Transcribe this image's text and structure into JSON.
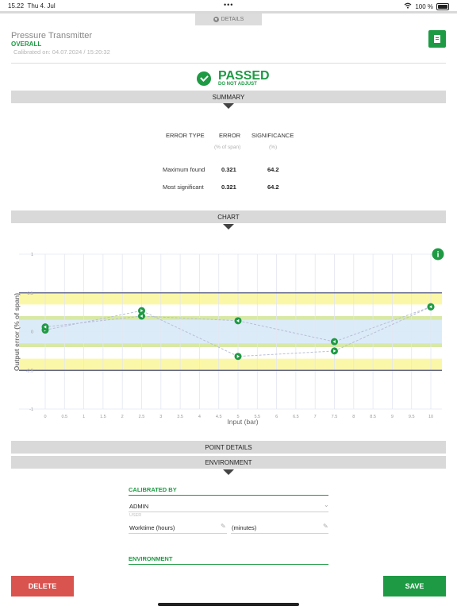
{
  "status_bar": {
    "time": "15.22",
    "date": "Thu 4. Jul",
    "battery": "100 %"
  },
  "details_tab": {
    "label": "DETAILS"
  },
  "header": {
    "title": "Pressure Transmitter",
    "subtitle": "OVERALL",
    "calibrated_on": "Calibrated on: 04.07.2024 / 15:20:32",
    "note_icon": "note-icon"
  },
  "result": {
    "status": "PASSED",
    "sub": "DO NOT ADJUST"
  },
  "summary": {
    "label": "SUMMARY",
    "headers": [
      "ERROR TYPE",
      "ERROR",
      "SIGNIFICANCE"
    ],
    "units": [
      "(% of span)",
      "(%)"
    ],
    "rows": [
      {
        "type": "Maximum found",
        "error": "0.321",
        "significance": "64.2"
      },
      {
        "type": "Most significant",
        "error": "0.321",
        "significance": "64.2"
      }
    ]
  },
  "chart_section": {
    "label": "CHART"
  },
  "chart_data": {
    "type": "line",
    "xlabel": "Input (bar)",
    "ylabel": "Output error (% of span)",
    "xlim": [
      0,
      10
    ],
    "ylim": [
      -1,
      1
    ],
    "x_ticks": [
      "0",
      "0.5",
      "1",
      "1.5",
      "2",
      "2.5",
      "3",
      "3.5",
      "4",
      "4.5",
      "5",
      "5.5",
      "6",
      "6.5",
      "7",
      "7.5",
      "8",
      "8.5",
      "9",
      "9.5",
      "10"
    ],
    "y_ticks": [
      "1",
      "0.5",
      "0",
      "-0.5",
      "-1"
    ],
    "limits": [
      -0.5,
      0.5
    ],
    "bands": [
      {
        "from": 0.35,
        "to": 0.5,
        "color": "#fbf7a8"
      },
      {
        "from": -0.5,
        "to": -0.35,
        "color": "#fbf7a8"
      },
      {
        "from": 0.15,
        "to": 0.2,
        "color": "#d7e9a3"
      },
      {
        "from": -0.2,
        "to": -0.15,
        "color": "#d7e9a3"
      },
      {
        "from": -0.15,
        "to": 0.15,
        "color": "#dcebf8"
      }
    ],
    "series": [
      {
        "direction": "up",
        "points": [
          [
            0,
            0.02
          ],
          [
            2.5,
            0.27
          ],
          [
            5,
            -0.32
          ],
          [
            7.5,
            -0.25
          ],
          [
            10,
            0.32
          ]
        ]
      },
      {
        "direction": "down",
        "points": [
          [
            10,
            0.32
          ],
          [
            7.5,
            -0.13
          ],
          [
            5,
            0.14
          ],
          [
            2.5,
            0.2
          ],
          [
            0,
            0.06
          ]
        ]
      }
    ],
    "colors": {
      "marker": "#1e9a44",
      "line": "#b9bfd6",
      "limit": "#4b4f7a",
      "grid": "#e3e6f2"
    }
  },
  "point_details": {
    "label": "POINT DETAILS"
  },
  "environment_section": {
    "label": "ENVIRONMENT"
  },
  "calibrated_by": {
    "label": "CALIBRATED BY",
    "user_value": "ADMIN",
    "user_caption": "USER",
    "worktime_hours": "Worktime (hours)",
    "worktime_minutes": "(minutes)"
  },
  "environment": {
    "label": "ENVIRONMENT"
  },
  "actions": {
    "delete": "DELETE",
    "save": "SAVE"
  }
}
